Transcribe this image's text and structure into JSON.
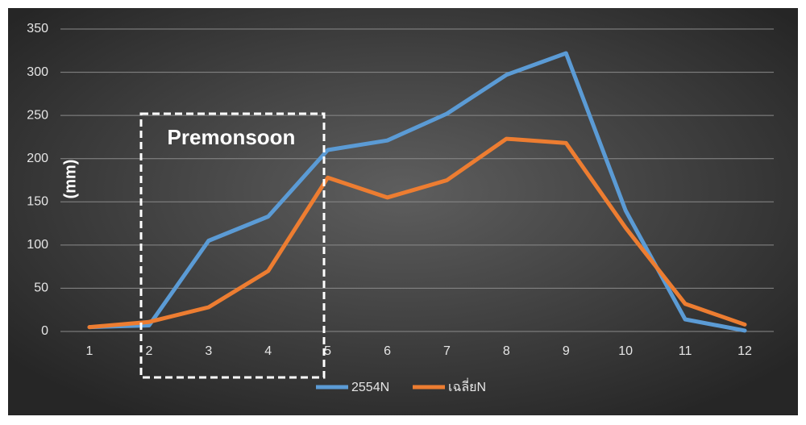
{
  "chart_data": {
    "type": "line",
    "y_label": "(mm)",
    "annotation": "Premonsoon",
    "categories": [
      "1",
      "2",
      "3",
      "4",
      "5",
      "6",
      "7",
      "8",
      "9",
      "10",
      "11",
      "12"
    ],
    "series": [
      {
        "name": "2554N",
        "color": "#5b9bd5",
        "values": [
          5,
          7,
          105,
          133,
          210,
          221,
          252,
          297,
          322,
          140,
          14,
          1
        ]
      },
      {
        "name": "เฉลี่ยN",
        "color": "#ed7d31",
        "values": [
          5,
          11,
          28,
          70,
          178,
          155,
          175,
          223,
          218,
          120,
          32,
          8
        ]
      }
    ],
    "ylim": [
      0,
      350
    ],
    "yticks": [
      0,
      50,
      100,
      150,
      200,
      250,
      300,
      350
    ],
    "grid": true,
    "legend": "bottom"
  }
}
